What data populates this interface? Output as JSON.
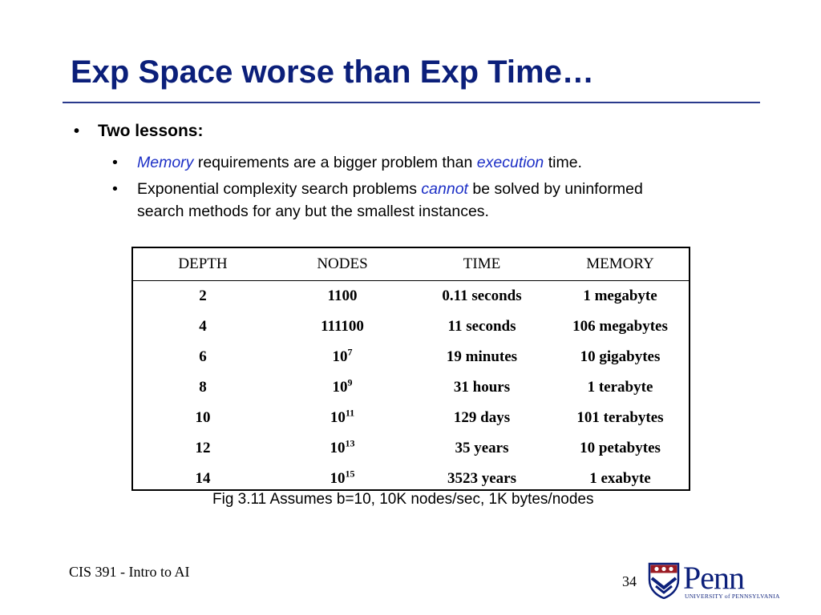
{
  "slide": {
    "title": "Exp Space worse than Exp Time…",
    "bullet": "Two lessons:",
    "sub1": {
      "a": "Memory",
      "b": " requirements are a bigger problem than ",
      "c": "execution",
      "d": " time."
    },
    "sub2": {
      "a": "Exponential complexity search problems ",
      "b": "cannot",
      "c": " be solved by uninformed",
      "d": "search methods for any but the smallest instances."
    }
  },
  "table": {
    "headers": [
      "DEPTH",
      "NODES",
      "TIME",
      "MEMORY"
    ],
    "rows": [
      {
        "depth": "2",
        "nodes_base": "1100",
        "nodes_exp": "",
        "time": "0.11 seconds",
        "memory": "1 megabyte"
      },
      {
        "depth": "4",
        "nodes_base": "111100",
        "nodes_exp": "",
        "time": "11 seconds",
        "memory": "106 megabytes"
      },
      {
        "depth": "6",
        "nodes_base": "10",
        "nodes_exp": "7",
        "time": "19 minutes",
        "memory": "10 gigabytes"
      },
      {
        "depth": "8",
        "nodes_base": "10",
        "nodes_exp": "9",
        "time": "31 hours",
        "memory": "1 terabyte"
      },
      {
        "depth": "10",
        "nodes_base": "10",
        "nodes_exp": "11",
        "time": "129 days",
        "memory": "101 terabytes"
      },
      {
        "depth": "12",
        "nodes_base": "10",
        "nodes_exp": "13",
        "time": "35 years",
        "memory": "10 petabytes"
      },
      {
        "depth": "14",
        "nodes_base": "10",
        "nodes_exp": "15",
        "time": "3523 years",
        "memory": "1 exabyte"
      }
    ]
  },
  "caption": "Fig 3.11  Assumes b=10, 10K nodes/sec, 1K bytes/nodes",
  "footer": {
    "course": "CIS 391 - Intro to AI",
    "page": "34"
  },
  "logo": {
    "name": "Penn",
    "university": "UNIVERSITY of PENNSYLVANIA"
  },
  "colors": {
    "title": "#0b1f7a",
    "emphasis": "#1c2fc6",
    "shield": "#0b1f7a",
    "shield_accent": "#9b1c24"
  }
}
